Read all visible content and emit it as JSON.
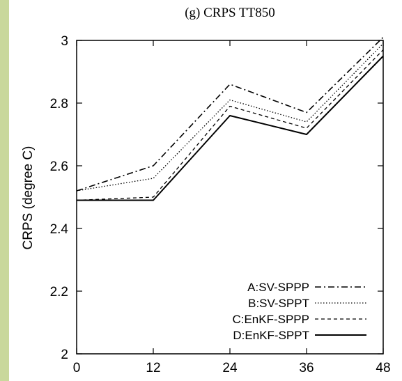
{
  "chart_data": {
    "type": "line",
    "title": "(g)   CRPS TT850",
    "xlabel": "",
    "ylabel": "CRPS (degree C)",
    "x": [
      0,
      12,
      24,
      36,
      48
    ],
    "xticks": [
      "0",
      "12",
      "24",
      "36",
      "48"
    ],
    "yticks": [
      "2",
      "2.2",
      "2.4",
      "2.6",
      "2.8",
      "3"
    ],
    "xlim": [
      0,
      48
    ],
    "ylim": [
      2,
      3
    ],
    "grid": false,
    "legend_position": "bottom-right",
    "series": [
      {
        "name": "A:SV-SPPP",
        "values": [
          2.52,
          2.6,
          2.86,
          2.77,
          3.01
        ],
        "dash": "dashdot"
      },
      {
        "name": "B:SV-SPPT",
        "values": [
          2.52,
          2.56,
          2.81,
          2.74,
          2.99
        ],
        "dash": "dotted"
      },
      {
        "name": "C:EnKF-SPPP",
        "values": [
          2.49,
          2.5,
          2.79,
          2.72,
          2.97
        ],
        "dash": "dashed"
      },
      {
        "name": "D:EnKF-SPPT",
        "values": [
          2.49,
          2.49,
          2.76,
          2.7,
          2.95
        ],
        "dash": "solid"
      }
    ]
  }
}
